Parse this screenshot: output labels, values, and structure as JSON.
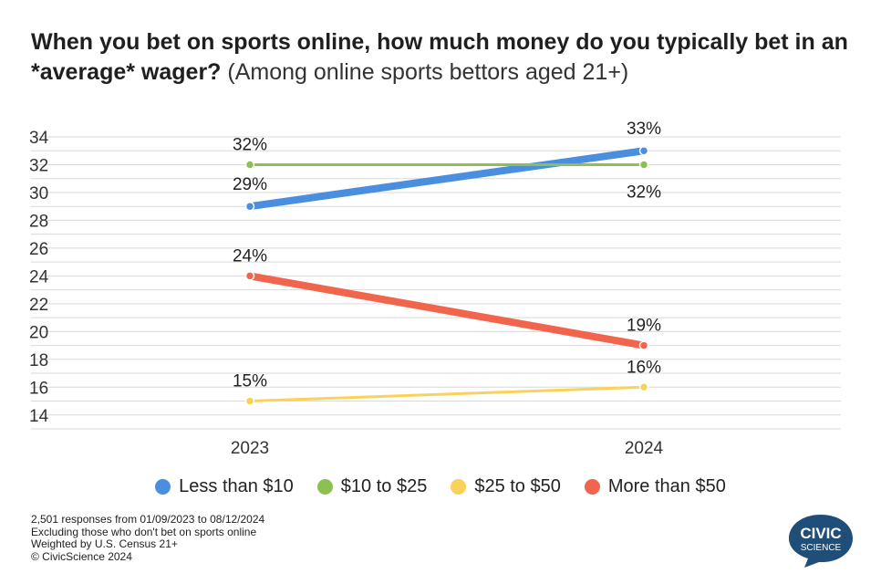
{
  "title": {
    "bold": "When you bet on sports online, how much money do you typically bet in an *average* wager?",
    "subtitle": "(Among online sports bettors aged 21+)"
  },
  "chart_data": {
    "type": "line",
    "x": [
      "2023",
      "2024"
    ],
    "ylim": [
      13,
      34
    ],
    "yticks": [
      14,
      16,
      18,
      20,
      22,
      24,
      26,
      28,
      30,
      32,
      34
    ],
    "grid": true,
    "legend_position": "bottom",
    "series": [
      {
        "name": "Less than $10",
        "values": [
          29,
          33
        ],
        "labels": [
          "29%",
          "33%"
        ],
        "color": "#4a8ee0"
      },
      {
        "name": "$10 to $25",
        "values": [
          32,
          32
        ],
        "labels": [
          "32%",
          "32%"
        ],
        "color": "#8cc152"
      },
      {
        "name": "$25 to $50",
        "values": [
          15,
          16
        ],
        "labels": [
          "15%",
          "16%"
        ],
        "color": "#fad25a"
      },
      {
        "name": "More than $50",
        "values": [
          24,
          19
        ],
        "labels": [
          "24%",
          "19%"
        ],
        "color": "#f1654c"
      }
    ]
  },
  "footnotes": [
    "2,501 responses from 01/09/2023 to 08/12/2024",
    "Excluding those who don't bet on sports online",
    "Weighted by U.S. Census 21+",
    "© CivicScience 2024"
  ],
  "logo": {
    "line1": "CIVIC",
    "line2": "SCIENCE",
    "color": "#1f4e79"
  }
}
